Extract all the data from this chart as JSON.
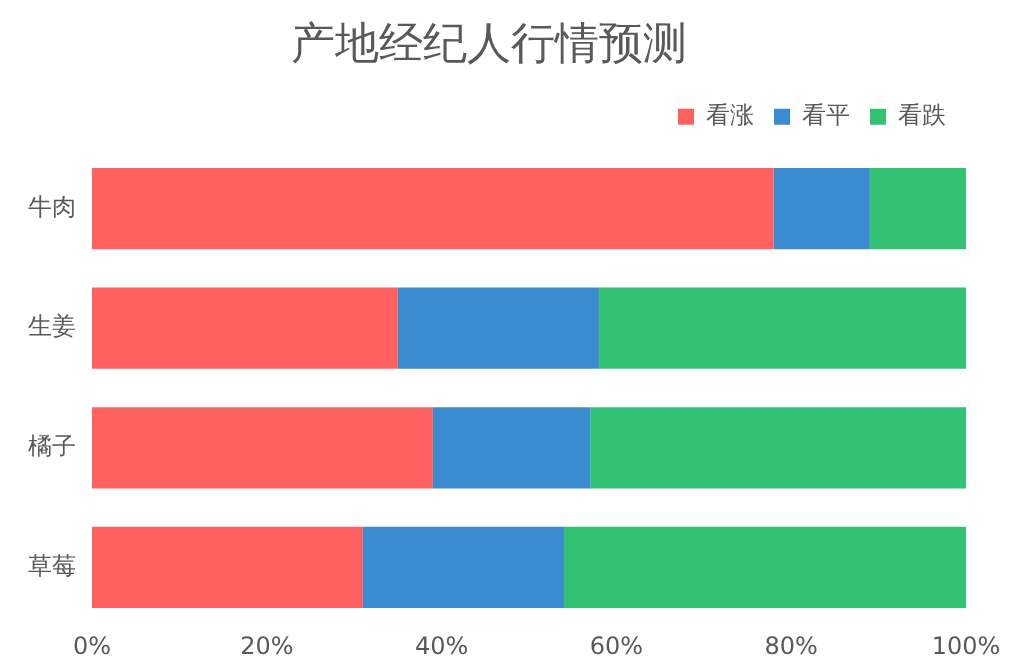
{
  "chart_data": {
    "type": "bar",
    "orientation": "horizontal",
    "stacked": true,
    "title": "产地经纪人行情预测",
    "legend": "top right",
    "grid": false,
    "categories": [
      "牛肉",
      "生姜",
      "橘子",
      "草莓"
    ],
    "series": [
      {
        "name": "看涨",
        "color": "#ff6161",
        "values": [
          78,
          35,
          39,
          31
        ]
      },
      {
        "name": "看平",
        "color": "#3a8bd0",
        "values": [
          11,
          23,
          18,
          23
        ]
      },
      {
        "name": "看跌",
        "color": "#33c173",
        "values": [
          11,
          42,
          43,
          46
        ]
      }
    ],
    "xlim": [
      0,
      100
    ],
    "xticks": [
      {
        "value": 0,
        "label": "0%"
      },
      {
        "value": 20,
        "label": "20%"
      },
      {
        "value": 40,
        "label": "40%"
      },
      {
        "value": 60,
        "label": "60%"
      },
      {
        "value": 80,
        "label": "80%"
      },
      {
        "value": 100,
        "label": "100%"
      }
    ]
  }
}
